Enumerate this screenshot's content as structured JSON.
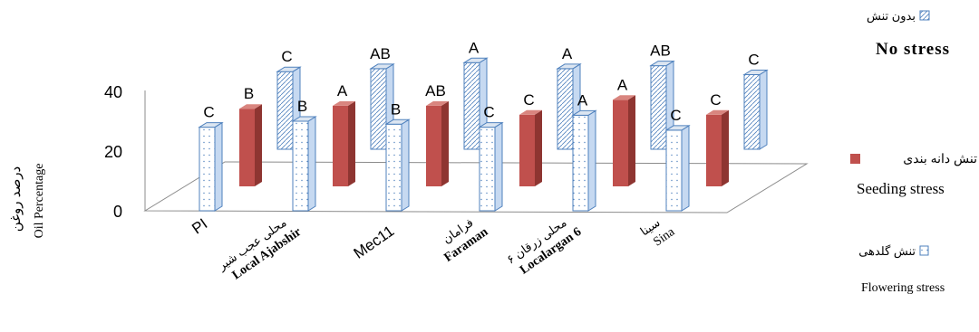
{
  "chart_data": {
    "type": "bar",
    "categories": [
      "PI",
      "Local Ajabshir",
      "Mec11",
      "Faraman",
      "Localargan 6",
      "Sina"
    ],
    "category_labels_fa": [
      "",
      "محلی عجب شیر",
      "",
      "فرامان",
      "محلی زرقان ۶",
      "سینا"
    ],
    "ylabel": "Oil Percentage",
    "ylabel_fa": "درصد روغن",
    "yticks": [
      0,
      20,
      40
    ],
    "ylim": [
      0,
      45
    ],
    "legend_position": "right",
    "series": [
      {
        "name": "Flowering stress",
        "name_fa": "تنش گلدهی",
        "color": "#ffffff",
        "pattern": "dots",
        "values": [
          28,
          30,
          29,
          28,
          32,
          27
        ],
        "labels": [
          "C",
          "B",
          "B",
          "C",
          "A",
          "C"
        ]
      },
      {
        "name": "Seeding stress",
        "name_fa": "تنش دانه بندی",
        "color": "#c0504d",
        "pattern": "solid",
        "values": [
          26,
          27,
          27,
          24,
          29,
          24
        ],
        "labels": [
          "B",
          "A",
          "AB",
          "C",
          "A",
          "C"
        ]
      },
      {
        "name": "No stress",
        "name_fa": "بدون تنش",
        "color": "#ffffff",
        "pattern": "hatch",
        "values": [
          26,
          27,
          29,
          27,
          28,
          25
        ],
        "labels": [
          "C",
          "AB",
          "A",
          "A",
          "AB",
          "C"
        ]
      }
    ]
  }
}
